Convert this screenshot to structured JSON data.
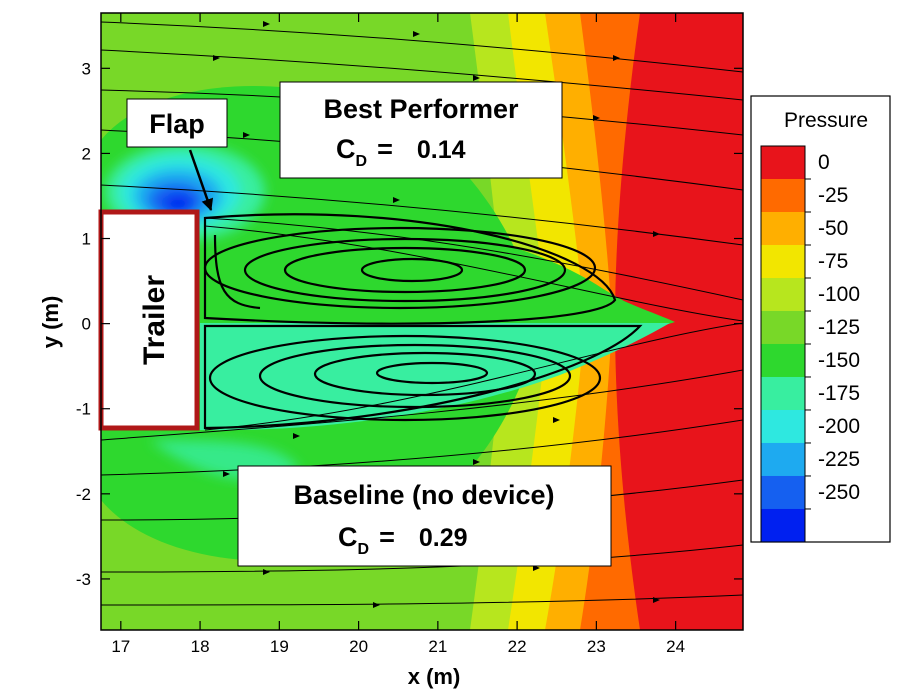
{
  "chart_data": {
    "type": "heatmap",
    "xlabel": "x (m)",
    "ylabel": "y (m)",
    "xlim": [
      16.75,
      24.85
    ],
    "ylim": [
      -3.6,
      3.65
    ],
    "xticks": [
      17,
      18,
      19,
      20,
      21,
      22,
      23,
      24
    ],
    "yticks": [
      -3,
      -2,
      -1,
      0,
      1,
      2,
      3
    ],
    "colorbar": {
      "title": "Pressure",
      "levels": [
        0,
        -25,
        -50,
        -75,
        -100,
        -125,
        -150,
        -175,
        -200,
        -225,
        -250
      ],
      "colors": [
        "#e8141b",
        "#ff6a00",
        "#ffaf00",
        "#f2e600",
        "#b7e61e",
        "#78d828",
        "#2ed82e",
        "#38eea0",
        "#2ee8e0",
        "#1eaaf0",
        "#1560f0",
        "#0020f0"
      ]
    },
    "trailer": {
      "label": "Trailer",
      "x_end": 18.0,
      "y_range": [
        -1.3,
        1.3
      ]
    },
    "flap": {
      "label": "Flap",
      "arrow_target": [
        18.05,
        1.35
      ]
    },
    "annotations": [
      {
        "title": "Best Performer",
        "cd_label": "C",
        "cd_subscript": "D",
        "equals": "=",
        "cd_value": "0.14",
        "cd": 0.14,
        "region": "upper"
      },
      {
        "title": "Baseline (no device)",
        "cd_label": "C",
        "cd_subscript": "D",
        "equals": "=",
        "cd_value": "0.29",
        "cd": 0.29,
        "region": "lower"
      }
    ],
    "vortices": [
      {
        "name": "upper",
        "center": [
          20.6,
          0.6
        ]
      },
      {
        "name": "lower",
        "center": [
          20.8,
          -0.6
        ]
      }
    ],
    "grid": false
  }
}
